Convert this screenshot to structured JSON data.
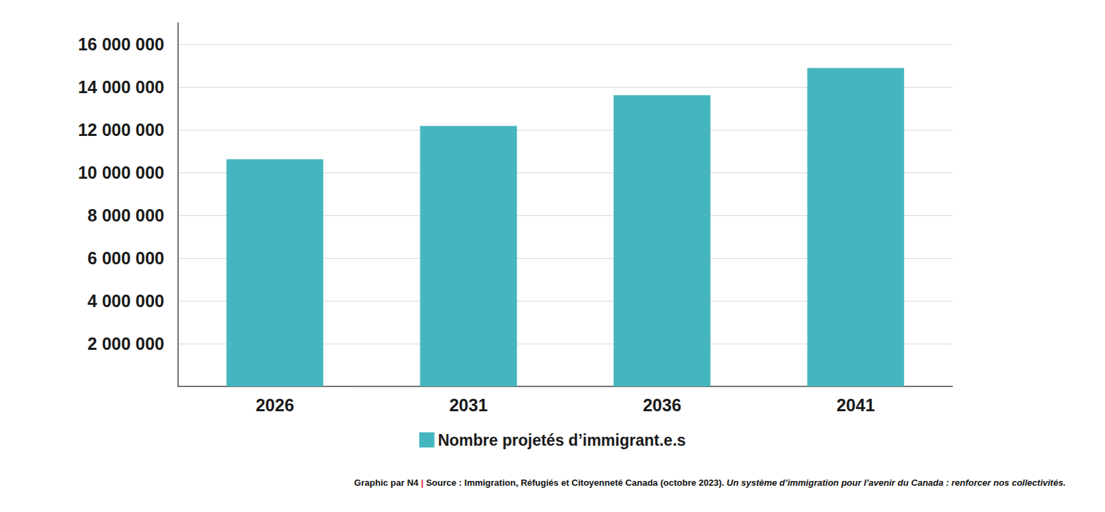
{
  "chart_data": {
    "type": "bar",
    "categories": [
      "2026",
      "2031",
      "2036",
      "2041"
    ],
    "series": [
      {
        "name": "Nombre projetés d’immigrant.e.s",
        "color": "#45b6bf",
        "values": [
          10620000,
          12180000,
          13610000,
          14890000
        ]
      }
    ],
    "ylim": [
      0,
      17000000
    ],
    "yticks": [
      {
        "value": 2000000,
        "label": "2 000 000"
      },
      {
        "value": 4000000,
        "label": "4 000 000"
      },
      {
        "value": 6000000,
        "label": "6 000 000"
      },
      {
        "value": 8000000,
        "label": "8 000 000"
      },
      {
        "value": 10000000,
        "label": "10 000 000"
      },
      {
        "value": 12000000,
        "label": "12 000 000"
      },
      {
        "value": 14000000,
        "label": "14 000 000"
      },
      {
        "value": 16000000,
        "label": "16 000 000"
      }
    ],
    "grid": true,
    "legend": "bottom",
    "credit": "Graphic par N4",
    "separator": "|",
    "source": "Source : Immigration, Réfugiés et Citoyenneté Canada (octobre 2023).",
    "source_title": "Un système d’immigration pour l’avenir du Canada : renforcer nos collectivités."
  }
}
